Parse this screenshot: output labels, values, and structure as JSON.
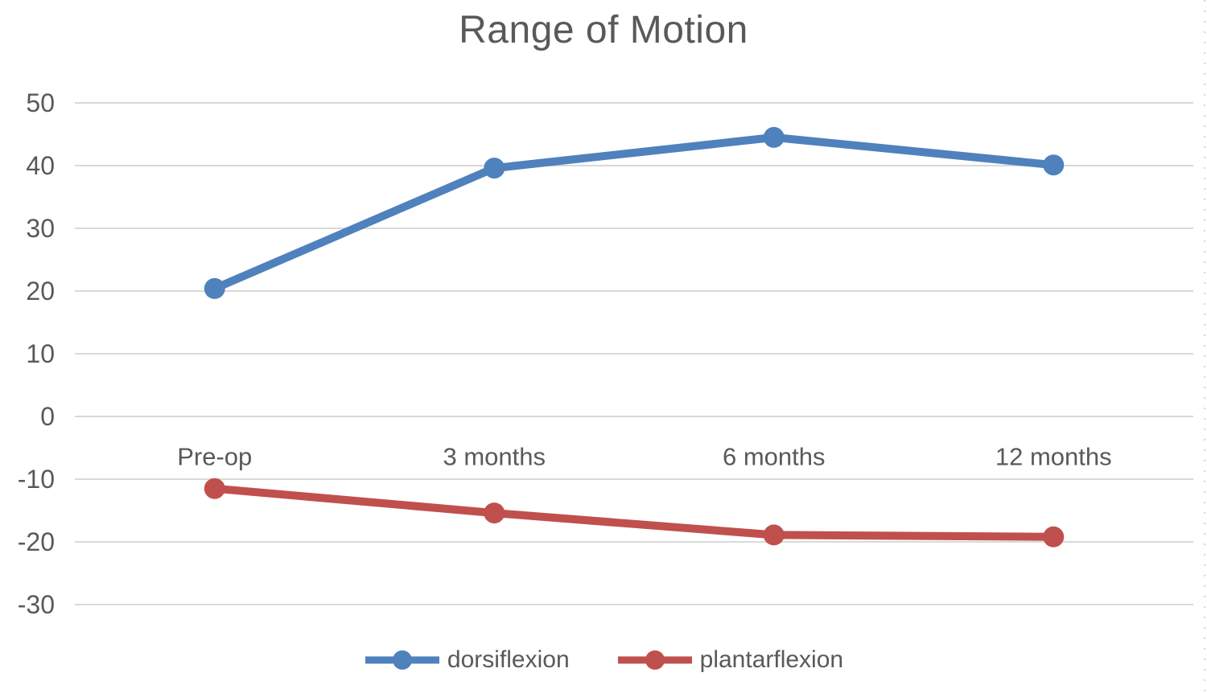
{
  "title": "Range of Motion",
  "colors": {
    "title_text": "#595959",
    "axis_text": "#595959",
    "gridline": "#D9D9D9",
    "dorsiflexion": "#4F81BD",
    "plantarflexion": "#C0504D",
    "page_edge_dots": "#DCDB9F"
  },
  "chart_data": {
    "type": "line",
    "title": "Range of Motion",
    "categories": [
      "Pre-op",
      "3 months",
      "6 months",
      "12 months"
    ],
    "series": [
      {
        "name": "dorsiflexion",
        "color": "#4F81BD",
        "values": [
          20.4,
          39.6,
          44.5,
          40.1
        ]
      },
      {
        "name": "plantarflexion",
        "color": "#C0504D",
        "values": [
          -11.5,
          -15.4,
          -18.9,
          -19.2
        ]
      }
    ],
    "xlabel": "",
    "ylabel": "",
    "ylim": [
      -30,
      50
    ],
    "yticks": [
      50,
      40,
      30,
      20,
      10,
      0,
      -10,
      -20,
      -30
    ],
    "grid": "horizontal",
    "legend_position": "bottom",
    "marker": "circle",
    "style": "line_with_markers"
  }
}
